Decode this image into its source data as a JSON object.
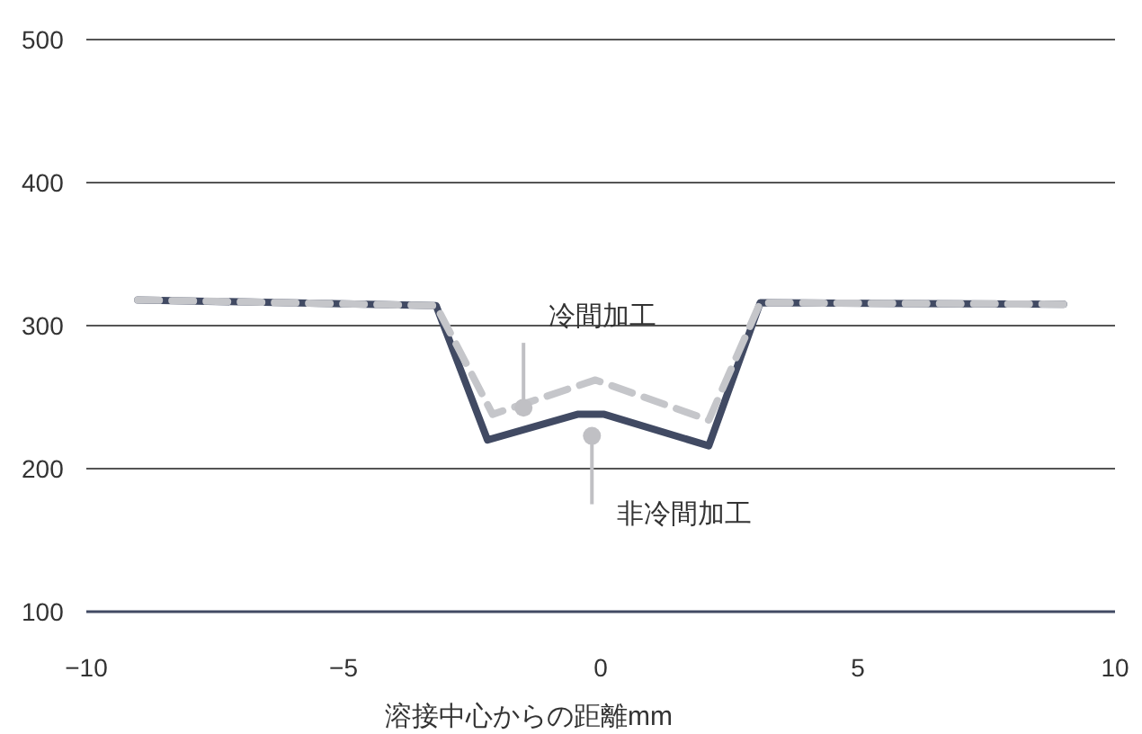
{
  "chart_data": {
    "type": "line",
    "xlabel": "溶接中心からの距離mm",
    "xlim": [
      -10,
      10
    ],
    "xticks": [
      {
        "value": -10,
        "label": "−10"
      },
      {
        "value": -5,
        "label": "−5"
      },
      0,
      5,
      10
    ],
    "ylim": [
      100,
      500
    ],
    "yticks": [
      100,
      200,
      300,
      400,
      500
    ],
    "grid": "y",
    "series": [
      {
        "name": "冷間加工",
        "color": "#c5c6ca",
        "line_style": "dashed",
        "x": [
          -9.0,
          -3.2,
          -2.1,
          -0.1,
          2.1,
          3.1,
          9.0
        ],
        "values": [
          318,
          314,
          238,
          262,
          234,
          316,
          315
        ]
      },
      {
        "name": "非冷間加工",
        "color": "#414a63",
        "line_style": "solid",
        "x": [
          -9.0,
          -3.2,
          -2.2,
          -0.45,
          0.07,
          2.1,
          3.1,
          9.0
        ],
        "values": [
          318,
          314,
          220,
          238,
          238,
          216,
          316,
          315
        ]
      }
    ]
  }
}
